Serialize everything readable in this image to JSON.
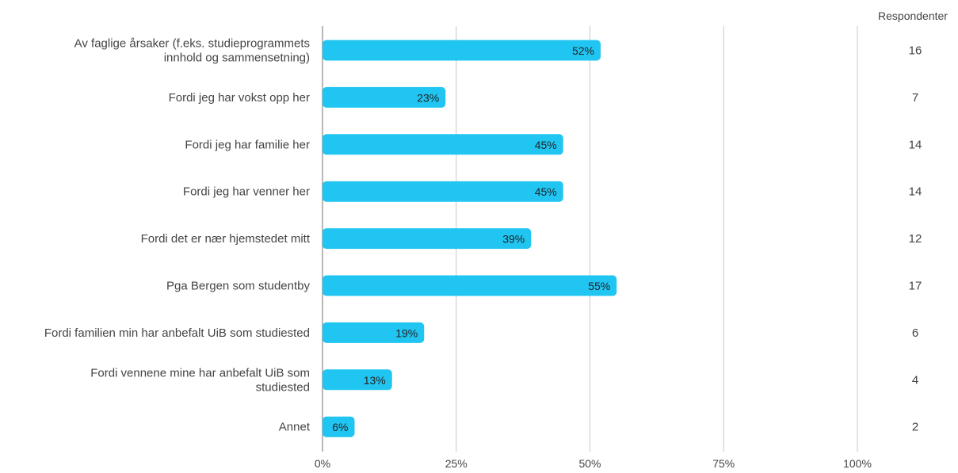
{
  "chart_data": {
    "type": "bar",
    "orientation": "horizontal",
    "categories": [
      [
        "Av faglige årsaker (f.eks. studieprogrammets",
        "innhold og sammensetning)"
      ],
      [
        "Fordi jeg har vokst opp her"
      ],
      [
        "Fordi jeg har familie her"
      ],
      [
        "Fordi jeg har venner her"
      ],
      [
        "Fordi det er nær hjemstedet mitt"
      ],
      [
        "Pga Bergen som studentby"
      ],
      [
        "Fordi familien min har anbefalt UiB som studiested"
      ],
      [
        "Fordi vennene mine har anbefalt UiB som",
        "studiested"
      ],
      [
        "Annet"
      ]
    ],
    "values": [
      52,
      23,
      45,
      45,
      39,
      55,
      19,
      13,
      6
    ],
    "value_labels": [
      "52%",
      "23%",
      "45%",
      "45%",
      "39%",
      "55%",
      "19%",
      "13%",
      "6%"
    ],
    "respondents_header": "Respondenter",
    "respondents": [
      "16",
      "7",
      "14",
      "14",
      "12",
      "17",
      "6",
      "4",
      "2"
    ],
    "x_ticks": [
      0,
      25,
      50,
      75,
      100
    ],
    "x_tick_labels": [
      "0%",
      "25%",
      "50%",
      "75%",
      "100%"
    ],
    "xlim": [
      0,
      100
    ],
    "grid": true,
    "bar_color": "#21c5f2"
  }
}
